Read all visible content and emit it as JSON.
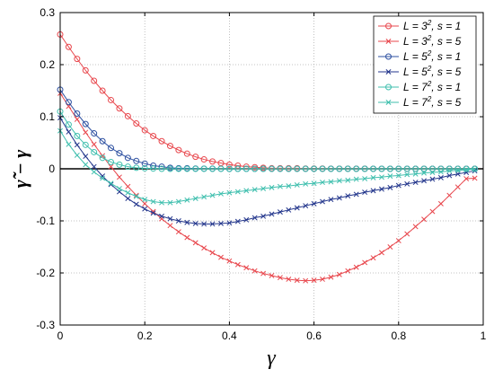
{
  "chart_data": {
    "type": "line",
    "xlabel": "γ",
    "ylabel": "γ̃ − γ",
    "xlim": [
      0,
      1
    ],
    "ylim": [
      -0.3,
      0.3
    ],
    "xticks": [
      "0",
      "0.2",
      "0.4",
      "0.6",
      "0.8",
      "1"
    ],
    "yticks": [
      "-0.3",
      "-0.2",
      "-0.1",
      "0",
      "0.1",
      "0.2",
      "0.3"
    ],
    "grid": true,
    "zero_line": true,
    "legend_position": "top-right",
    "x": [
      0.0,
      0.02,
      0.04,
      0.06,
      0.08,
      0.1,
      0.12,
      0.14,
      0.16,
      0.18,
      0.2,
      0.22,
      0.24,
      0.26,
      0.28,
      0.3,
      0.32,
      0.34,
      0.36,
      0.38,
      0.4,
      0.42,
      0.44,
      0.46,
      0.48,
      0.5,
      0.52,
      0.54,
      0.56,
      0.58,
      0.6,
      0.62,
      0.64,
      0.66,
      0.68,
      0.7,
      0.72,
      0.74,
      0.76,
      0.78,
      0.8,
      0.82,
      0.84,
      0.86,
      0.88,
      0.9,
      0.92,
      0.94,
      0.96,
      0.98
    ],
    "series": [
      {
        "name": "L = 3^2, s = 1",
        "legend": {
          "base": "L = 3",
          "exp": "2",
          "tail": ",  s = 1"
        },
        "color": "#e8474d",
        "marker": "circle",
        "values": [
          0.258,
          0.234,
          0.211,
          0.189,
          0.169,
          0.15,
          0.132,
          0.116,
          0.101,
          0.087,
          0.074,
          0.063,
          0.053,
          0.044,
          0.036,
          0.029,
          0.023,
          0.018,
          0.014,
          0.011,
          0.008,
          0.006,
          0.004,
          0.003,
          0.002,
          0.001,
          0.001,
          0.001,
          0.001,
          0.0005,
          0.0005,
          0.0005,
          0.0003,
          0.0003,
          0.0002,
          0.0002,
          0.0002,
          0.0001,
          0.0001,
          0.0001,
          0.0001,
          0.0,
          0.0,
          0.0,
          0.0,
          0.0,
          0.0,
          0.0,
          0.0,
          0.0
        ]
      },
      {
        "name": "L = 3^2, s = 5",
        "legend": {
          "base": "L = 3",
          "exp": "2",
          "tail": ",  s = 5"
        },
        "color": "#e8474d",
        "marker": "x",
        "values": [
          0.145,
          0.12,
          0.095,
          0.07,
          0.047,
          0.025,
          0.004,
          -0.016,
          -0.034,
          -0.051,
          -0.067,
          -0.082,
          -0.096,
          -0.109,
          -0.121,
          -0.132,
          -0.142,
          -0.152,
          -0.161,
          -0.17,
          -0.177,
          -0.184,
          -0.19,
          -0.196,
          -0.201,
          -0.205,
          -0.209,
          -0.212,
          -0.214,
          -0.215,
          -0.214,
          -0.212,
          -0.208,
          -0.203,
          -0.196,
          -0.189,
          -0.18,
          -0.171,
          -0.161,
          -0.15,
          -0.138,
          -0.125,
          -0.111,
          -0.097,
          -0.082,
          -0.067,
          -0.051,
          -0.035,
          -0.019,
          -0.018
        ]
      },
      {
        "name": "L = 5^2, s = 1",
        "legend": {
          "base": "L = 5",
          "exp": "2",
          "tail": ",  s = 1"
        },
        "color": "#2c4fa0",
        "marker": "circle",
        "values": [
          0.152,
          0.128,
          0.106,
          0.086,
          0.068,
          0.053,
          0.04,
          0.03,
          0.021,
          0.015,
          0.01,
          0.006,
          0.004,
          0.002,
          0.001,
          0.001,
          0.0005,
          0.0003,
          0.0002,
          0.0001,
          0.0,
          0.0,
          0.0,
          0.0,
          0.0,
          0.0,
          0.0,
          0.0,
          0.0,
          0.0,
          0.0,
          0.0,
          0.0,
          0.0,
          0.0,
          0.0,
          0.0,
          0.0,
          0.0,
          0.0,
          0.0,
          0.0,
          0.0,
          0.0,
          0.0,
          0.0,
          0.0,
          0.0,
          0.0,
          0.0
        ]
      },
      {
        "name": "L = 5^2, s = 5",
        "legend": {
          "base": "L = 5",
          "exp": "2",
          "tail": ",  s = 5"
        },
        "color": "#23368c",
        "marker": "x",
        "values": [
          0.098,
          0.071,
          0.046,
          0.024,
          0.004,
          -0.014,
          -0.03,
          -0.044,
          -0.057,
          -0.068,
          -0.077,
          -0.085,
          -0.091,
          -0.096,
          -0.1,
          -0.103,
          -0.105,
          -0.106,
          -0.106,
          -0.105,
          -0.104,
          -0.101,
          -0.098,
          -0.094,
          -0.091,
          -0.087,
          -0.083,
          -0.079,
          -0.075,
          -0.071,
          -0.067,
          -0.063,
          -0.059,
          -0.056,
          -0.052,
          -0.049,
          -0.045,
          -0.042,
          -0.039,
          -0.036,
          -0.032,
          -0.029,
          -0.026,
          -0.023,
          -0.02,
          -0.017,
          -0.013,
          -0.01,
          -0.007,
          -0.004
        ]
      },
      {
        "name": "L = 7^2, s = 1",
        "legend": {
          "base": "L = 7",
          "exp": "2",
          "tail": ",  s = 1"
        },
        "color": "#3fbfae",
        "marker": "circle",
        "values": [
          0.11,
          0.085,
          0.063,
          0.046,
          0.032,
          0.021,
          0.013,
          0.008,
          0.004,
          0.002,
          0.001,
          0.0005,
          0.0,
          0.0,
          0.0,
          0.0,
          0.0,
          0.0,
          0.0,
          0.0,
          0.0,
          0.0,
          0.0,
          0.0,
          0.0,
          0.0,
          0.0,
          0.0,
          0.0,
          0.0,
          0.0,
          0.0,
          0.0,
          0.0,
          0.0,
          0.0,
          0.0,
          0.0,
          0.0,
          0.0,
          0.0,
          0.0,
          0.0,
          0.0,
          0.0,
          0.0,
          0.0,
          0.0,
          0.0,
          0.0
        ]
      },
      {
        "name": "L = 7^2, s = 5",
        "legend": {
          "base": "L = 7",
          "exp": "2",
          "tail": ",  s = 5"
        },
        "color": "#3fbfae",
        "marker": "x",
        "values": [
          0.073,
          0.047,
          0.026,
          0.008,
          -0.006,
          -0.018,
          -0.028,
          -0.038,
          -0.046,
          -0.053,
          -0.059,
          -0.063,
          -0.065,
          -0.065,
          -0.063,
          -0.06,
          -0.057,
          -0.054,
          -0.051,
          -0.048,
          -0.046,
          -0.044,
          -0.042,
          -0.04,
          -0.038,
          -0.036,
          -0.034,
          -0.033,
          -0.031,
          -0.029,
          -0.028,
          -0.026,
          -0.025,
          -0.023,
          -0.022,
          -0.02,
          -0.019,
          -0.017,
          -0.016,
          -0.014,
          -0.013,
          -0.011,
          -0.01,
          -0.008,
          -0.007,
          -0.006,
          -0.004,
          -0.003,
          -0.002,
          -0.001
        ]
      }
    ]
  }
}
